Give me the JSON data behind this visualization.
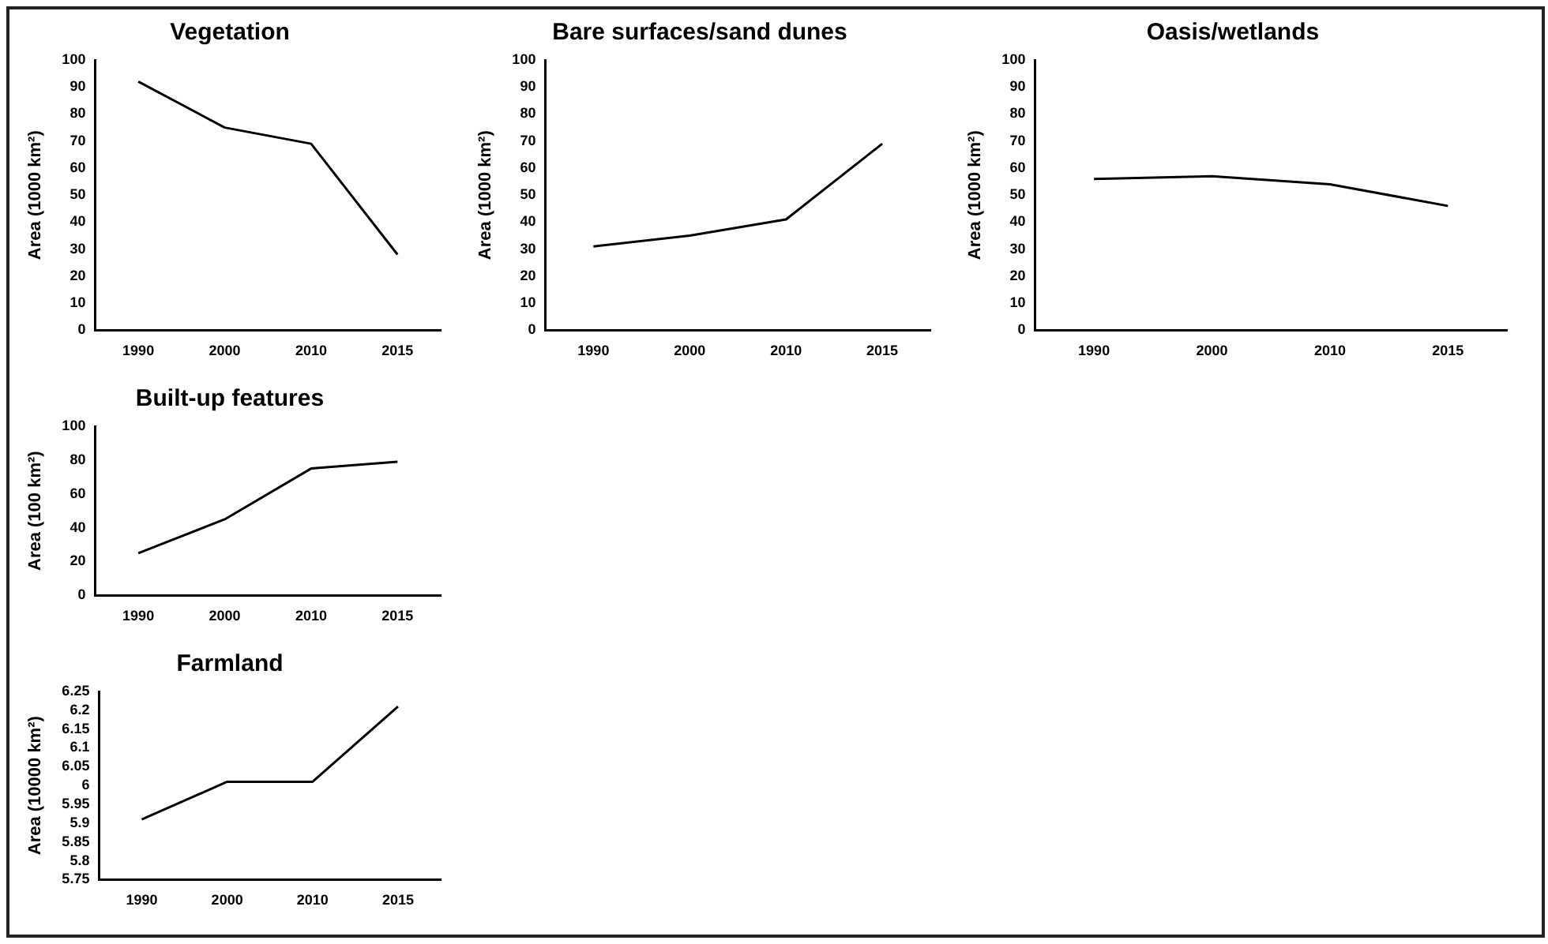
{
  "chart_data": [
    {
      "type": "line",
      "title": "Vegetation",
      "ylabel": "Area (1000 km²)",
      "categories": [
        "1990",
        "2000",
        "2010",
        "2015"
      ],
      "series": [
        {
          "color": "#000000",
          "values": [
            92,
            75,
            69,
            28
          ]
        }
      ],
      "ylim": [
        0,
        100
      ],
      "yticks": [
        0,
        10,
        20,
        30,
        40,
        50,
        60,
        70,
        80,
        90,
        100
      ],
      "grid": false,
      "legend": false,
      "marker": "none"
    },
    {
      "type": "line",
      "title": "Bare surfaces/sand dunes",
      "ylabel": "Area (1000 km²)",
      "categories": [
        "1990",
        "2000",
        "2010",
        "2015"
      ],
      "series": [
        {
          "color": "#000000",
          "values": [
            31,
            35,
            41,
            69
          ]
        }
      ],
      "ylim": [
        0,
        100
      ],
      "yticks": [
        0,
        10,
        20,
        30,
        40,
        50,
        60,
        70,
        80,
        90,
        100
      ],
      "grid": false,
      "legend": false,
      "marker": "none"
    },
    {
      "type": "line",
      "title": "Oasis/wetlands",
      "ylabel": "Area (1000 km²)",
      "categories": [
        "1990",
        "2000",
        "2010",
        "2015"
      ],
      "series": [
        {
          "color": "#000000",
          "values": [
            56,
            57,
            54,
            46
          ]
        }
      ],
      "ylim": [
        0,
        100
      ],
      "yticks": [
        0,
        10,
        20,
        30,
        40,
        50,
        60,
        70,
        80,
        90,
        100
      ],
      "grid": false,
      "legend": false,
      "marker": "none"
    },
    {
      "type": "line",
      "title": "Built-up features",
      "ylabel": "Area (100 km²)",
      "categories": [
        "1990",
        "2000",
        "2010",
        "2015"
      ],
      "series": [
        {
          "color": "#000000",
          "values": [
            25,
            45,
            75,
            79
          ]
        }
      ],
      "ylim": [
        0,
        100
      ],
      "yticks": [
        0,
        20,
        40,
        60,
        80,
        100
      ],
      "grid": false,
      "legend": false,
      "marker": "none"
    },
    {
      "type": "line",
      "title": "Farmland",
      "ylabel": "Area (10000 km²)",
      "categories": [
        "1990",
        "2000",
        "2010",
        "2015"
      ],
      "series": [
        {
          "color": "#000000",
          "values": [
            5.91,
            6.01,
            6.01,
            6.21
          ]
        }
      ],
      "ylim": [
        5.75,
        6.25
      ],
      "yticks": [
        5.75,
        5.8,
        5.85,
        5.9,
        5.95,
        6,
        6.05,
        6.1,
        6.15,
        6.2,
        6.25
      ],
      "grid": false,
      "legend": false,
      "marker": "none"
    }
  ]
}
